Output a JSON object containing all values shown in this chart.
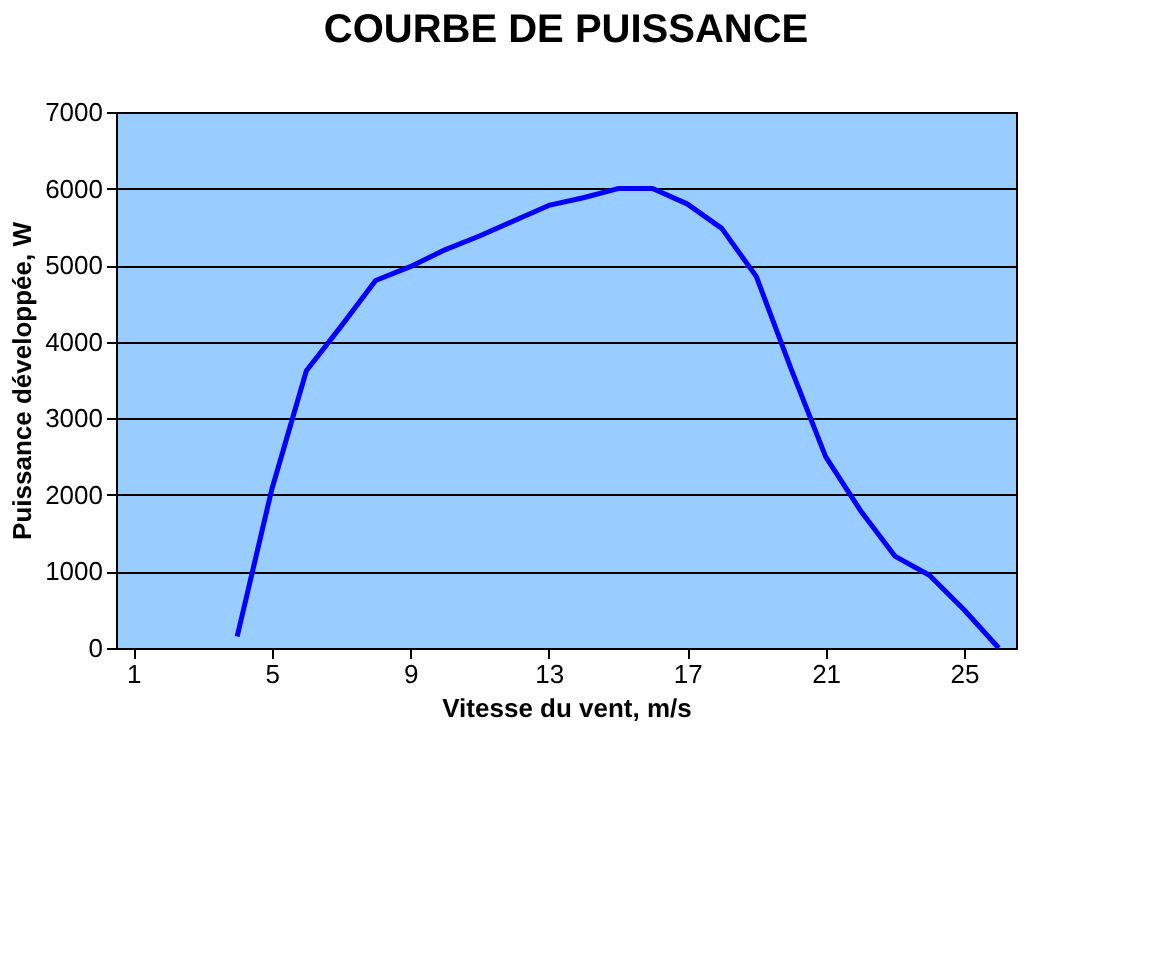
{
  "chart_data": {
    "type": "line",
    "title": "COURBE DE PUISSANCE",
    "xlabel": "Vitesse du vent, m/s",
    "ylabel": "Puissance développée, W",
    "x": [
      4,
      5,
      6,
      7,
      8,
      9,
      10,
      11,
      12,
      13,
      14,
      15,
      16,
      17,
      18,
      19,
      20,
      21,
      22,
      23,
      24,
      25,
      26
    ],
    "series": [
      {
        "color": "#0000ff",
        "values": [
          150,
          2070,
          3620,
          4200,
          4800,
          4980,
          5200,
          5380,
          5580,
          5780,
          5880,
          6000,
          6000,
          5800,
          5480,
          4850,
          3650,
          2500,
          1800,
          1200,
          950,
          500,
          0
        ]
      }
    ],
    "xlim": [
      0.5,
      26.5
    ],
    "xticks": [
      1,
      5,
      9,
      13,
      17,
      21,
      25
    ],
    "ylim": [
      0,
      7000
    ],
    "yticks": [
      0,
      1000,
      2000,
      3000,
      4000,
      5000,
      6000,
      7000
    ],
    "grid": "y",
    "marker": "none",
    "line_style": "solid"
  }
}
